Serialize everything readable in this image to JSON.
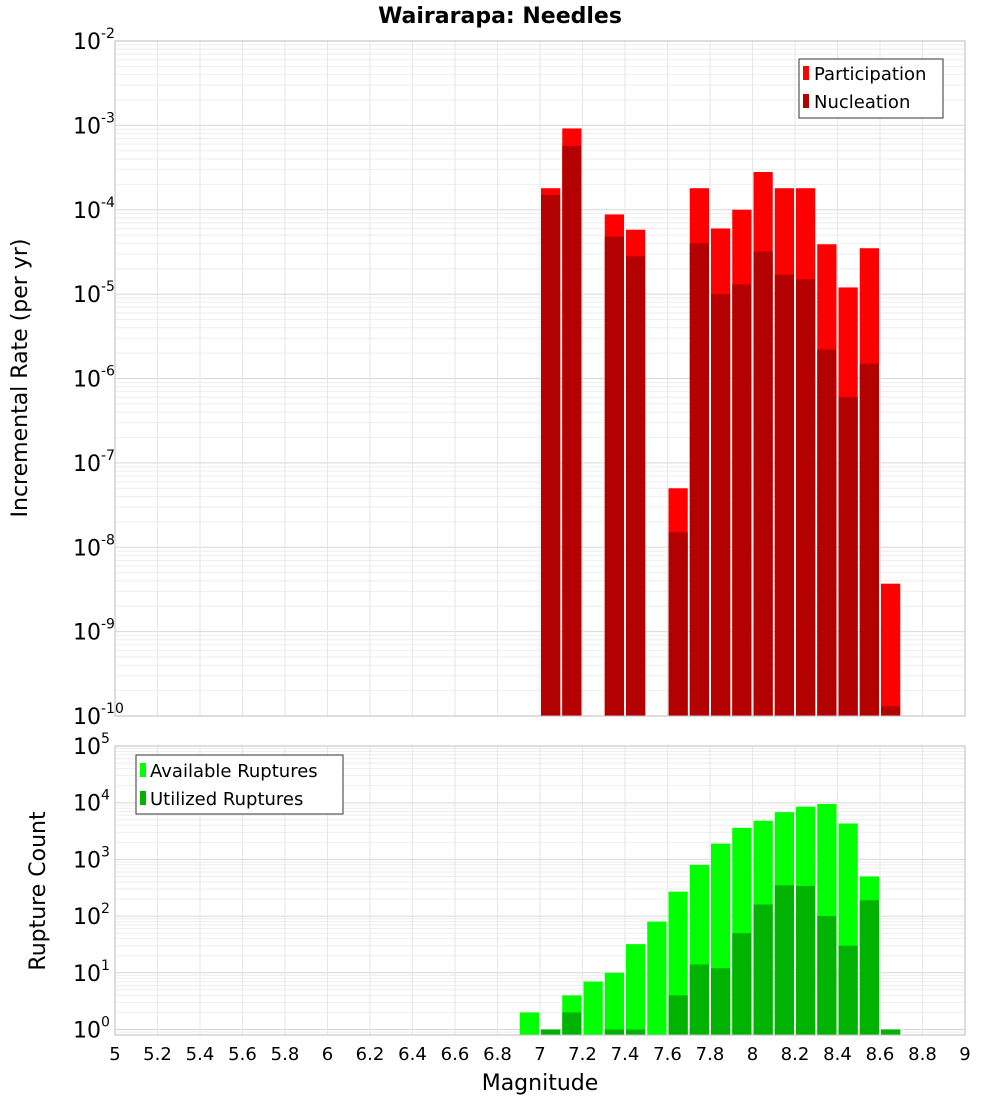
{
  "title": "Wairarapa: Needles",
  "chart_data": [
    {
      "type": "bar",
      "panel": "top",
      "ylabel": "Incremental Rate (per yr)",
      "yscale": "log",
      "ylim": [
        1e-10,
        0.01
      ],
      "xlim": [
        5,
        9
      ],
      "yticks": [
        {
          "base": "10",
          "exp": "-10"
        },
        {
          "base": "10",
          "exp": "-9"
        },
        {
          "base": "10",
          "exp": "-8"
        },
        {
          "base": "10",
          "exp": "-7"
        },
        {
          "base": "10",
          "exp": "-6"
        },
        {
          "base": "10",
          "exp": "-5"
        },
        {
          "base": "10",
          "exp": "-4"
        },
        {
          "base": "10",
          "exp": "-3"
        },
        {
          "base": "10",
          "exp": "-2"
        }
      ],
      "grid": true,
      "legend_position": "top-right",
      "bin_width": 0.1,
      "series": [
        {
          "name": "Participation",
          "color": "#ff0000",
          "x": [
            7.05,
            7.15,
            7.35,
            7.45,
            7.65,
            7.75,
            7.85,
            7.95,
            8.05,
            8.15,
            8.25,
            8.35,
            8.45,
            8.55,
            8.65
          ],
          "values": [
            0.00018,
            0.00092,
            8.8e-05,
            5.8e-05,
            5e-08,
            0.00018,
            6e-05,
            0.0001,
            0.00028,
            0.00018,
            0.00018,
            3.9e-05,
            1.2e-05,
            3.5e-05,
            3.7e-09
          ]
        },
        {
          "name": "Nucleation",
          "color": "#b30000",
          "x": [
            7.05,
            7.15,
            7.35,
            7.45,
            7.65,
            7.75,
            7.85,
            7.95,
            8.05,
            8.15,
            8.25,
            8.35,
            8.45,
            8.55,
            8.65
          ],
          "values": [
            0.00015,
            0.00057,
            4.8e-05,
            2.8e-05,
            1.5e-08,
            4e-05,
            1e-05,
            1.3e-05,
            3.2e-05,
            1.7e-05,
            1.5e-05,
            2.2e-06,
            6e-07,
            1.5e-06,
            1.3e-10
          ]
        }
      ]
    },
    {
      "type": "bar",
      "panel": "bottom",
      "xlabel": "Magnitude",
      "ylabel": "Rupture Count",
      "yscale": "log",
      "ylim": [
        0.8,
        100000
      ],
      "xlim": [
        5,
        9
      ],
      "xticks": [
        "5",
        "5.2",
        "5.4",
        "5.6",
        "5.8",
        "6",
        "6.2",
        "6.4",
        "6.6",
        "6.8",
        "7",
        "7.2",
        "7.4",
        "7.6",
        "7.8",
        "8",
        "8.2",
        "8.4",
        "8.6",
        "8.8",
        "9"
      ],
      "yticks": [
        {
          "base": "10",
          "exp": "0"
        },
        {
          "base": "10",
          "exp": "1"
        },
        {
          "base": "10",
          "exp": "2"
        },
        {
          "base": "10",
          "exp": "3"
        },
        {
          "base": "10",
          "exp": "4"
        },
        {
          "base": "10",
          "exp": "5"
        }
      ],
      "grid": true,
      "legend_position": "top-left",
      "bin_width": 0.1,
      "series": [
        {
          "name": "Available Ruptures",
          "color": "#00ff00",
          "x": [
            6.95,
            7.05,
            7.15,
            7.25,
            7.35,
            7.45,
            7.55,
            7.65,
            7.75,
            7.85,
            7.95,
            8.05,
            8.15,
            8.25,
            8.35,
            8.45,
            8.55,
            8.65
          ],
          "values": [
            2,
            1,
            4,
            7,
            10,
            32,
            80,
            270,
            800,
            1900,
            3600,
            4800,
            6800,
            8500,
            9500,
            4300,
            500,
            1
          ]
        },
        {
          "name": "Utilized Ruptures",
          "color": "#00b300",
          "x": [
            7.05,
            7.15,
            7.35,
            7.45,
            7.65,
            7.75,
            7.85,
            7.95,
            8.05,
            8.15,
            8.25,
            8.35,
            8.45,
            8.55,
            8.65
          ],
          "values": [
            1,
            2,
            1,
            1,
            4,
            14,
            12,
            50,
            160,
            350,
            340,
            100,
            30,
            190,
            1
          ]
        }
      ]
    }
  ]
}
